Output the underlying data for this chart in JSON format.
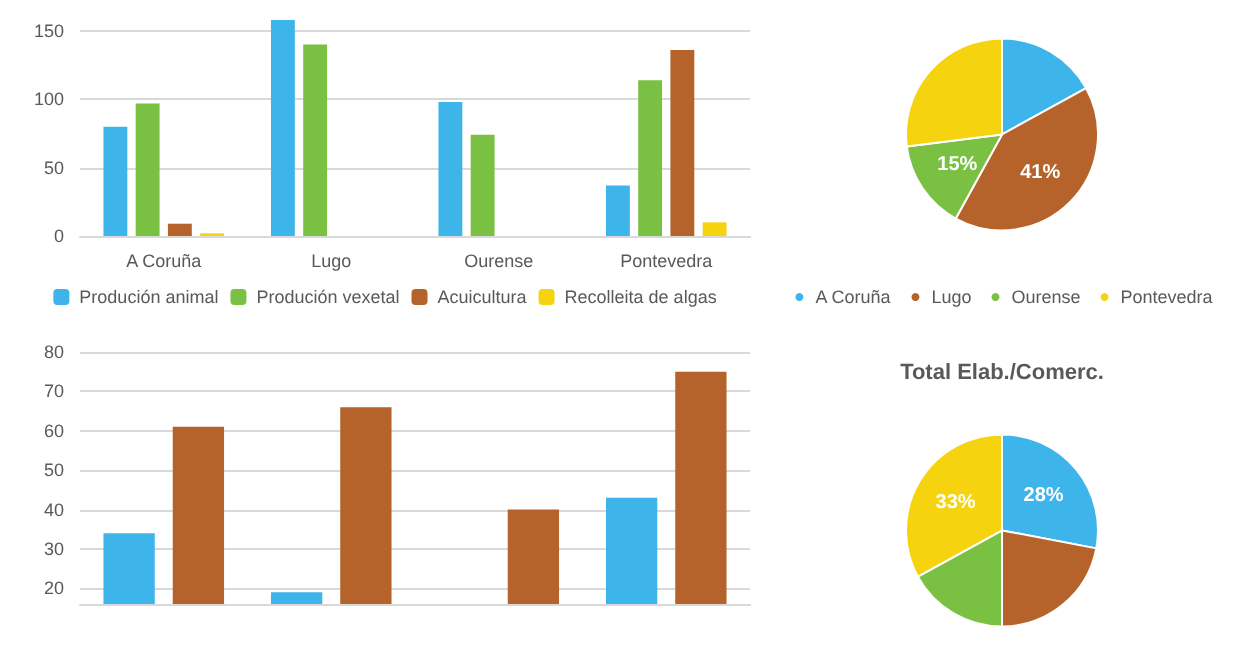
{
  "chart_data": [
    {
      "type": "bar",
      "categories": [
        "A Coruña",
        "Lugo",
        "Ourense",
        "Pontevedra"
      ],
      "series": [
        {
          "name": "Produción animal",
          "color": "#3db5ea",
          "values": [
            80,
            158,
            98,
            37
          ]
        },
        {
          "name": "Produción vexetal",
          "color": "#7ac143",
          "values": [
            97,
            140,
            74,
            114
          ]
        },
        {
          "name": "Acuicultura",
          "color": "#b5632a",
          "values": [
            9,
            0,
            0,
            136
          ]
        },
        {
          "name": "Recolleita de algas",
          "color": "#f5d40f",
          "values": [
            2,
            0,
            0,
            10
          ]
        }
      ],
      "ylim": [
        0,
        158
      ],
      "yticks": [
        0,
        50,
        100,
        150
      ],
      "grid": "y",
      "legend": "bottom"
    },
    {
      "type": "pie",
      "categories": [
        "A Coruña",
        "Lugo",
        "Ourense",
        "Pontevedra"
      ],
      "values": [
        17,
        41,
        15,
        27
      ],
      "colors": [
        "#3db5ea",
        "#b5632a",
        "#7ac143",
        "#f5d40f"
      ],
      "value_labels": [
        null,
        "41%",
        "15%",
        null
      ],
      "legend": "bottom"
    },
    {
      "type": "bar",
      "categories": [
        null,
        null,
        null,
        null
      ],
      "series": [
        {
          "color": "#3db5ea",
          "values": [
            34,
            19,
            null,
            43
          ]
        },
        {
          "color": "#b5632a",
          "values": [
            61,
            66,
            40,
            75
          ]
        }
      ],
      "ylim": [
        16,
        80
      ],
      "yticks": [
        20,
        30,
        40,
        50,
        60,
        70,
        80
      ],
      "grid": "y"
    },
    {
      "type": "pie",
      "title": "Total Elab./Comerc.",
      "categories": [
        null,
        null,
        null,
        null
      ],
      "values": [
        28,
        22,
        17,
        33
      ],
      "colors": [
        "#3db5ea",
        "#b5632a",
        "#7ac143",
        "#f5d40f"
      ],
      "value_labels": [
        "28%",
        null,
        null,
        "33%"
      ]
    }
  ]
}
